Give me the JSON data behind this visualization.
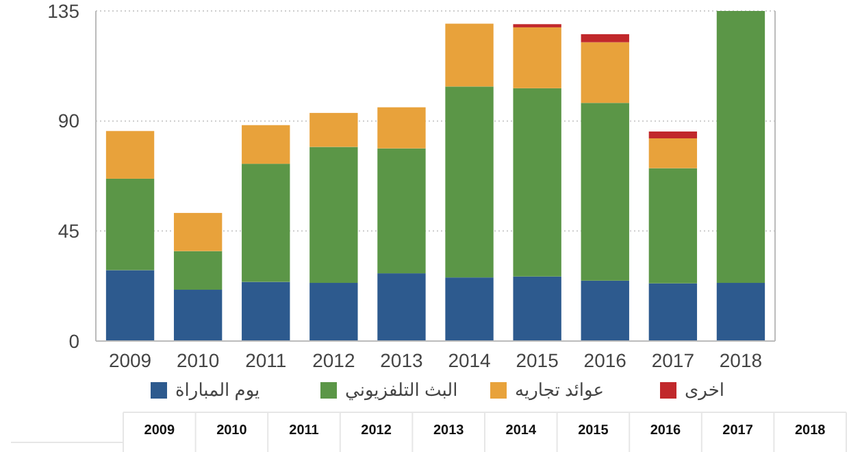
{
  "chart_data": {
    "type": "bar",
    "stacked": true,
    "categories": [
      "2009",
      "2010",
      "2011",
      "2012",
      "2013",
      "2014",
      "2015",
      "2016",
      "2017",
      "2018"
    ],
    "series": [
      {
        "name": "يوم المباراة",
        "color": "#2d5a8e",
        "values": [
          29,
          21,
          24.2,
          23.8,
          27.7,
          26,
          26.4,
          24.7,
          23.6,
          23.8
        ]
      },
      {
        "name": "البث التلفزيوني",
        "color": "#5b9647",
        "values": [
          37.4,
          15.8,
          48.3,
          55.6,
          51.1,
          78.1,
          77,
          72.7,
          47.1,
          111.2
        ]
      },
      {
        "name": "عوائد تجاريه",
        "color": "#e8a23b",
        "values": [
          19.5,
          15.6,
          15.8,
          13.9,
          16.8,
          25.7,
          24.9,
          24.8,
          12.2,
          null
        ]
      },
      {
        "name": "اخرى",
        "color": "#c1282b",
        "values": [
          null,
          null,
          null,
          null,
          null,
          null,
          1.3,
          3.3,
          2.8,
          null
        ]
      }
    ],
    "ylim": [
      0,
      135
    ],
    "yticks": [
      0,
      45,
      90,
      135
    ],
    "grid": "y",
    "legend": "bottom"
  }
}
